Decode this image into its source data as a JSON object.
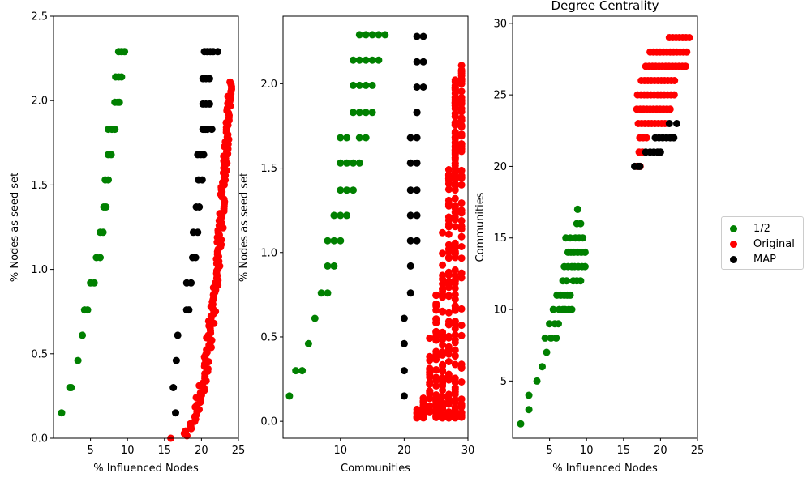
{
  "legend": {
    "items": [
      {
        "key": "half",
        "label": "1/2",
        "color": "#008000"
      },
      {
        "key": "orig",
        "label": "Original",
        "color": "#ff0000"
      },
      {
        "key": "map",
        "label": "MAP",
        "color": "#000000"
      }
    ]
  },
  "chart_data": [
    {
      "type": "scatter",
      "title": "",
      "xlabel": "% Influenced Nodes",
      "ylabel": "% Nodes as seed set",
      "xlim": [
        0,
        25
      ],
      "ylim": [
        0,
        2.5
      ],
      "xticks": [
        5,
        10,
        15,
        20,
        25
      ],
      "yticks": [
        0.0,
        0.5,
        1.0,
        1.5,
        2.0,
        2.5
      ],
      "ytick_format": 1,
      "series": [
        {
          "key": "half",
          "color": "#008000",
          "points": [
            [
              1.1,
              0.15
            ],
            [
              2.2,
              0.3
            ],
            [
              2.4,
              0.3
            ],
            [
              3.3,
              0.46
            ],
            [
              3.9,
              0.61
            ],
            [
              4.2,
              0.76
            ],
            [
              4.6,
              0.76
            ],
            [
              5.0,
              0.92
            ],
            [
              5.5,
              0.92
            ],
            [
              5.8,
              1.07
            ],
            [
              6.3,
              1.07
            ],
            [
              6.3,
              1.22
            ],
            [
              6.7,
              1.22
            ],
            [
              6.8,
              1.37
            ],
            [
              7.1,
              1.37
            ],
            [
              7.0,
              1.53
            ],
            [
              7.4,
              1.53
            ],
            [
              7.4,
              1.68
            ],
            [
              7.8,
              1.68
            ],
            [
              7.4,
              1.83
            ],
            [
              7.9,
              1.83
            ],
            [
              8.3,
              1.83
            ],
            [
              8.3,
              1.99
            ],
            [
              8.7,
              1.99
            ],
            [
              8.9,
              1.99
            ],
            [
              8.4,
              2.14
            ],
            [
              8.8,
              2.14
            ],
            [
              9.2,
              2.14
            ],
            [
              8.8,
              2.29
            ],
            [
              9.2,
              2.29
            ],
            [
              9.6,
              2.29
            ]
          ]
        },
        {
          "key": "map",
          "color": "#000000",
          "points": [
            [
              16.2,
              0.3
            ],
            [
              16.5,
              0.15
            ],
            [
              16.6,
              0.46
            ],
            [
              16.8,
              0.61
            ],
            [
              18.0,
              0.76
            ],
            [
              18.3,
              0.76
            ],
            [
              18.0,
              0.92
            ],
            [
              18.6,
              0.92
            ],
            [
              18.8,
              1.07
            ],
            [
              19.2,
              1.07
            ],
            [
              18.9,
              1.22
            ],
            [
              19.5,
              1.22
            ],
            [
              19.3,
              1.37
            ],
            [
              19.7,
              1.37
            ],
            [
              19.6,
              1.53
            ],
            [
              20.1,
              1.53
            ],
            [
              19.5,
              1.68
            ],
            [
              19.9,
              1.68
            ],
            [
              20.3,
              1.68
            ],
            [
              20.2,
              1.83
            ],
            [
              20.5,
              1.83
            ],
            [
              20.8,
              1.83
            ],
            [
              21.4,
              1.83
            ],
            [
              20.2,
              1.98
            ],
            [
              20.6,
              1.98
            ],
            [
              21.1,
              1.98
            ],
            [
              20.2,
              2.13
            ],
            [
              20.6,
              2.13
            ],
            [
              21.1,
              2.13
            ],
            [
              20.4,
              2.29
            ],
            [
              20.8,
              2.29
            ],
            [
              21.2,
              2.29
            ],
            [
              21.6,
              2.29
            ],
            [
              22.2,
              2.29
            ]
          ]
        },
        {
          "key": "orig",
          "color": "#ff0000",
          "curve": {
            "x0": 16.4,
            "x1": 23.9,
            "y_max": 2.11,
            "power": 2.7,
            "count": 150,
            "jitter": 1.1
          }
        }
      ]
    },
    {
      "type": "scatter",
      "title": "",
      "xlabel": "Communities",
      "ylabel": "% Nodes as seed set",
      "xlim": [
        1,
        30
      ],
      "ylim": [
        -0.1,
        2.4
      ],
      "xticks": [
        0,
        10,
        20,
        30
      ],
      "yticks": [
        0.0,
        0.5,
        1.0,
        1.5,
        2.0
      ],
      "ytick_format": 1,
      "series": [
        {
          "key": "half",
          "color": "#008000",
          "points": [
            [
              2,
              0.15
            ],
            [
              3,
              0.3
            ],
            [
              4,
              0.3
            ],
            [
              5,
              0.46
            ],
            [
              6,
              0.61
            ],
            [
              7,
              0.76
            ],
            [
              8,
              0.76
            ],
            [
              8,
              0.92
            ],
            [
              9,
              0.92
            ],
            [
              8,
              1.07
            ],
            [
              9,
              1.07
            ],
            [
              10,
              1.07
            ],
            [
              9,
              1.22
            ],
            [
              10,
              1.22
            ],
            [
              11,
              1.22
            ],
            [
              10,
              1.37
            ],
            [
              11,
              1.37
            ],
            [
              12,
              1.37
            ],
            [
              10,
              1.53
            ],
            [
              11,
              1.53
            ],
            [
              12,
              1.53
            ],
            [
              13,
              1.53
            ],
            [
              10,
              1.68
            ],
            [
              11,
              1.68
            ],
            [
              13,
              1.68
            ],
            [
              14,
              1.68
            ],
            [
              12,
              1.83
            ],
            [
              13,
              1.83
            ],
            [
              14,
              1.83
            ],
            [
              15,
              1.83
            ],
            [
              12,
              1.99
            ],
            [
              13,
              1.99
            ],
            [
              14,
              1.99
            ],
            [
              15,
              1.99
            ],
            [
              12,
              2.14
            ],
            [
              13,
              2.14
            ],
            [
              14,
              2.14
            ],
            [
              15,
              2.14
            ],
            [
              16,
              2.14
            ],
            [
              13,
              2.29
            ],
            [
              14,
              2.29
            ],
            [
              15,
              2.29
            ],
            [
              16,
              2.29
            ],
            [
              17,
              2.29
            ]
          ]
        },
        {
          "key": "map",
          "color": "#000000",
          "points": [
            [
              20,
              0.15
            ],
            [
              20,
              0.3
            ],
            [
              20,
              0.46
            ],
            [
              20,
              0.61
            ],
            [
              21,
              0.76
            ],
            [
              21,
              0.92
            ],
            [
              21,
              1.07
            ],
            [
              22,
              1.07
            ],
            [
              21,
              1.22
            ],
            [
              22,
              1.22
            ],
            [
              21,
              1.37
            ],
            [
              22,
              1.37
            ],
            [
              21,
              1.53
            ],
            [
              22,
              1.53
            ],
            [
              21,
              1.68
            ],
            [
              22,
              1.68
            ],
            [
              22,
              1.83
            ],
            [
              22,
              1.83
            ],
            [
              22,
              1.98
            ],
            [
              23,
              1.98
            ],
            [
              22,
              2.13
            ],
            [
              23,
              2.13
            ],
            [
              22,
              2.28
            ],
            [
              23,
              2.28
            ]
          ]
        },
        {
          "key": "orig",
          "color": "#ff0000",
          "cloud": {
            "x_min": 20,
            "x_max": 29,
            "y_min": 0.02,
            "y_max": 2.11,
            "count": 380
          }
        }
      ]
    },
    {
      "type": "scatter",
      "title": "Degree Centrality",
      "xlabel": "% Influenced Nodes",
      "ylabel": "Communities",
      "xlim": [
        0,
        25
      ],
      "ylim": [
        1,
        30.5
      ],
      "xticks": [
        5,
        10,
        15,
        20,
        25
      ],
      "yticks": [
        5,
        10,
        15,
        20,
        25,
        30
      ],
      "ytick_format": 0,
      "series": [
        {
          "key": "half",
          "color": "#008000",
          "points": [
            [
              1.1,
              2
            ],
            [
              2.2,
              3
            ],
            [
              2.2,
              4
            ],
            [
              3.3,
              5
            ],
            [
              4.0,
              6
            ],
            [
              4.4,
              8
            ],
            [
              4.6,
              7
            ],
            [
              5.0,
              9
            ],
            [
              5.2,
              8
            ],
            [
              5.5,
              10
            ],
            [
              5.7,
              9
            ],
            [
              5.9,
              8
            ],
            [
              6.3,
              10
            ],
            [
              6.0,
              11
            ],
            [
              6.5,
              11
            ],
            [
              6.2,
              9
            ],
            [
              6.8,
              10
            ],
            [
              7.0,
              11
            ],
            [
              7.4,
              11
            ],
            [
              7.8,
              11
            ],
            [
              7.1,
              10
            ],
            [
              7.6,
              10
            ],
            [
              8.0,
              10
            ],
            [
              6.8,
              12
            ],
            [
              7.3,
              12
            ],
            [
              7.0,
              13
            ],
            [
              7.5,
              13
            ],
            [
              8.0,
              13
            ],
            [
              7.5,
              14
            ],
            [
              7.9,
              14
            ],
            [
              7.2,
              15
            ],
            [
              7.8,
              15
            ],
            [
              8.3,
              14
            ],
            [
              8.8,
              14
            ],
            [
              9.3,
              14
            ],
            [
              9.8,
              14
            ],
            [
              8.4,
              13
            ],
            [
              8.9,
              13
            ],
            [
              9.4,
              13
            ],
            [
              9.8,
              13
            ],
            [
              8.2,
              12
            ],
            [
              8.7,
              12
            ],
            [
              9.2,
              12
            ],
            [
              8.5,
              15
            ],
            [
              9.0,
              15
            ],
            [
              9.5,
              15
            ],
            [
              8.7,
              16
            ],
            [
              9.2,
              16
            ],
            [
              8.8,
              17
            ]
          ]
        },
        {
          "key": "map",
          "color": "#000000",
          "points": [
            [
              16.5,
              20
            ],
            [
              17.0,
              20
            ],
            [
              17.2,
              20
            ],
            [
              18.0,
              21
            ],
            [
              18.6,
              21
            ],
            [
              19.1,
              21
            ],
            [
              19.6,
              21
            ],
            [
              20.0,
              21
            ],
            [
              19.3,
              22
            ],
            [
              19.8,
              22
            ],
            [
              20.3,
              22
            ],
            [
              20.8,
              22
            ],
            [
              21.3,
              22
            ],
            [
              21.8,
              22
            ],
            [
              21.2,
              23
            ],
            [
              22.2,
              23
            ]
          ]
        },
        {
          "key": "orig",
          "color": "#ff0000",
          "bands": [
            [
              16.8,
              17.4,
              20
            ],
            [
              17.1,
              17.9,
              21
            ],
            [
              17.2,
              18.3,
              22
            ],
            [
              17.0,
              21.0,
              23
            ],
            [
              16.8,
              21.5,
              24
            ],
            [
              16.9,
              21.9,
              25
            ],
            [
              17.4,
              22.2,
              26
            ],
            [
              18.0,
              23.7,
              27
            ],
            [
              18.6,
              23.9,
              28
            ],
            [
              21.2,
              24.0,
              29
            ]
          ]
        }
      ]
    }
  ]
}
